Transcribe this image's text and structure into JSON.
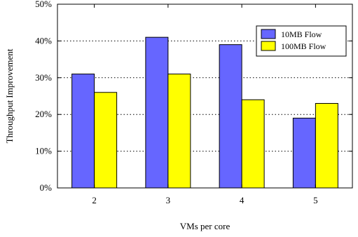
{
  "chart_data": {
    "type": "bar",
    "categories": [
      "2",
      "3",
      "4",
      "5"
    ],
    "series": [
      {
        "name": "10MB Flow",
        "values": [
          31,
          41,
          39,
          19
        ],
        "color": "#6666ff"
      },
      {
        "name": "100MB Flow",
        "values": [
          26,
          31,
          24,
          23
        ],
        "color": "#ffff00"
      }
    ],
    "y_ticks": [
      0,
      10,
      20,
      30,
      40,
      50
    ],
    "y_tick_suffix": "%",
    "ylim": [
      0,
      50
    ],
    "xlabel": "VMs per core",
    "ylabel": "Throughput Improvement",
    "grid": "horizontal dotted",
    "legend_position": "top-right"
  }
}
